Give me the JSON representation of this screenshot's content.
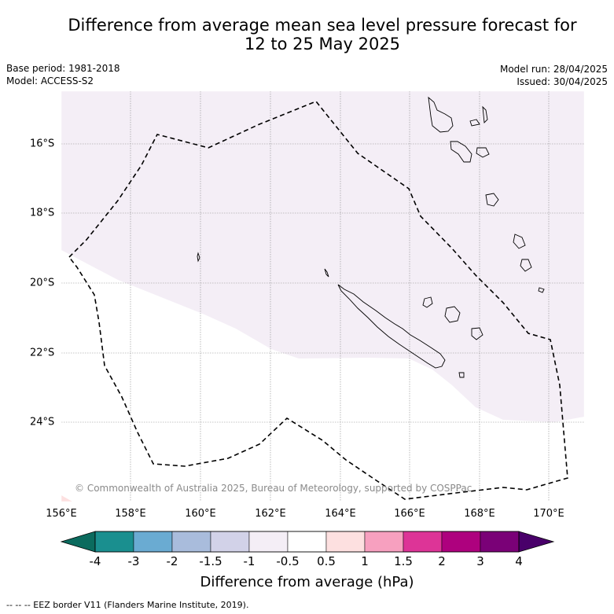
{
  "title": {
    "line1": "Difference from average mean sea level pressure forecast for",
    "line2": "12 to 25 May 2025"
  },
  "meta": {
    "base_period": "Base period: 1981-2018",
    "model": "Model: ACCESS-S2",
    "model_run": "Model run: 28/04/2025",
    "issued": "Issued: 30/04/2025"
  },
  "map": {
    "latitude_labels": [
      "16°S",
      "18°S",
      "20°S",
      "22°S",
      "24°S"
    ],
    "longitude_labels": [
      "156°E",
      "158°E",
      "160°E",
      "162°E",
      "164°E",
      "166°E",
      "168°E",
      "170°E"
    ],
    "copyright": "© Commonwealth of Australia 2025, Bureau of Meteorology, supported by COSPPac",
    "region_fill_color": "#f4eef6",
    "eez_line_color": "#000000"
  },
  "colorbar": {
    "title": "Difference from average (hPa)",
    "tick_labels": [
      "-4",
      "-3",
      "-2",
      "-1.5",
      "-1",
      "-0.5",
      "0.5",
      "1",
      "1.5",
      "2",
      "3",
      "4"
    ],
    "colors": [
      "#1a8f8f",
      "#6aabd2",
      "#a9bcdc",
      "#d2d2e8",
      "#f4eef6",
      "#ffffff",
      "#fde0e0",
      "#f7a0bf",
      "#dd3497",
      "#ae017e",
      "#7a0177"
    ],
    "under_color": "#0b6b5e",
    "over_color": "#49006a"
  },
  "footnote": "-- -- -- EEZ border V11 (Flanders Marine Institute, 2019)."
}
